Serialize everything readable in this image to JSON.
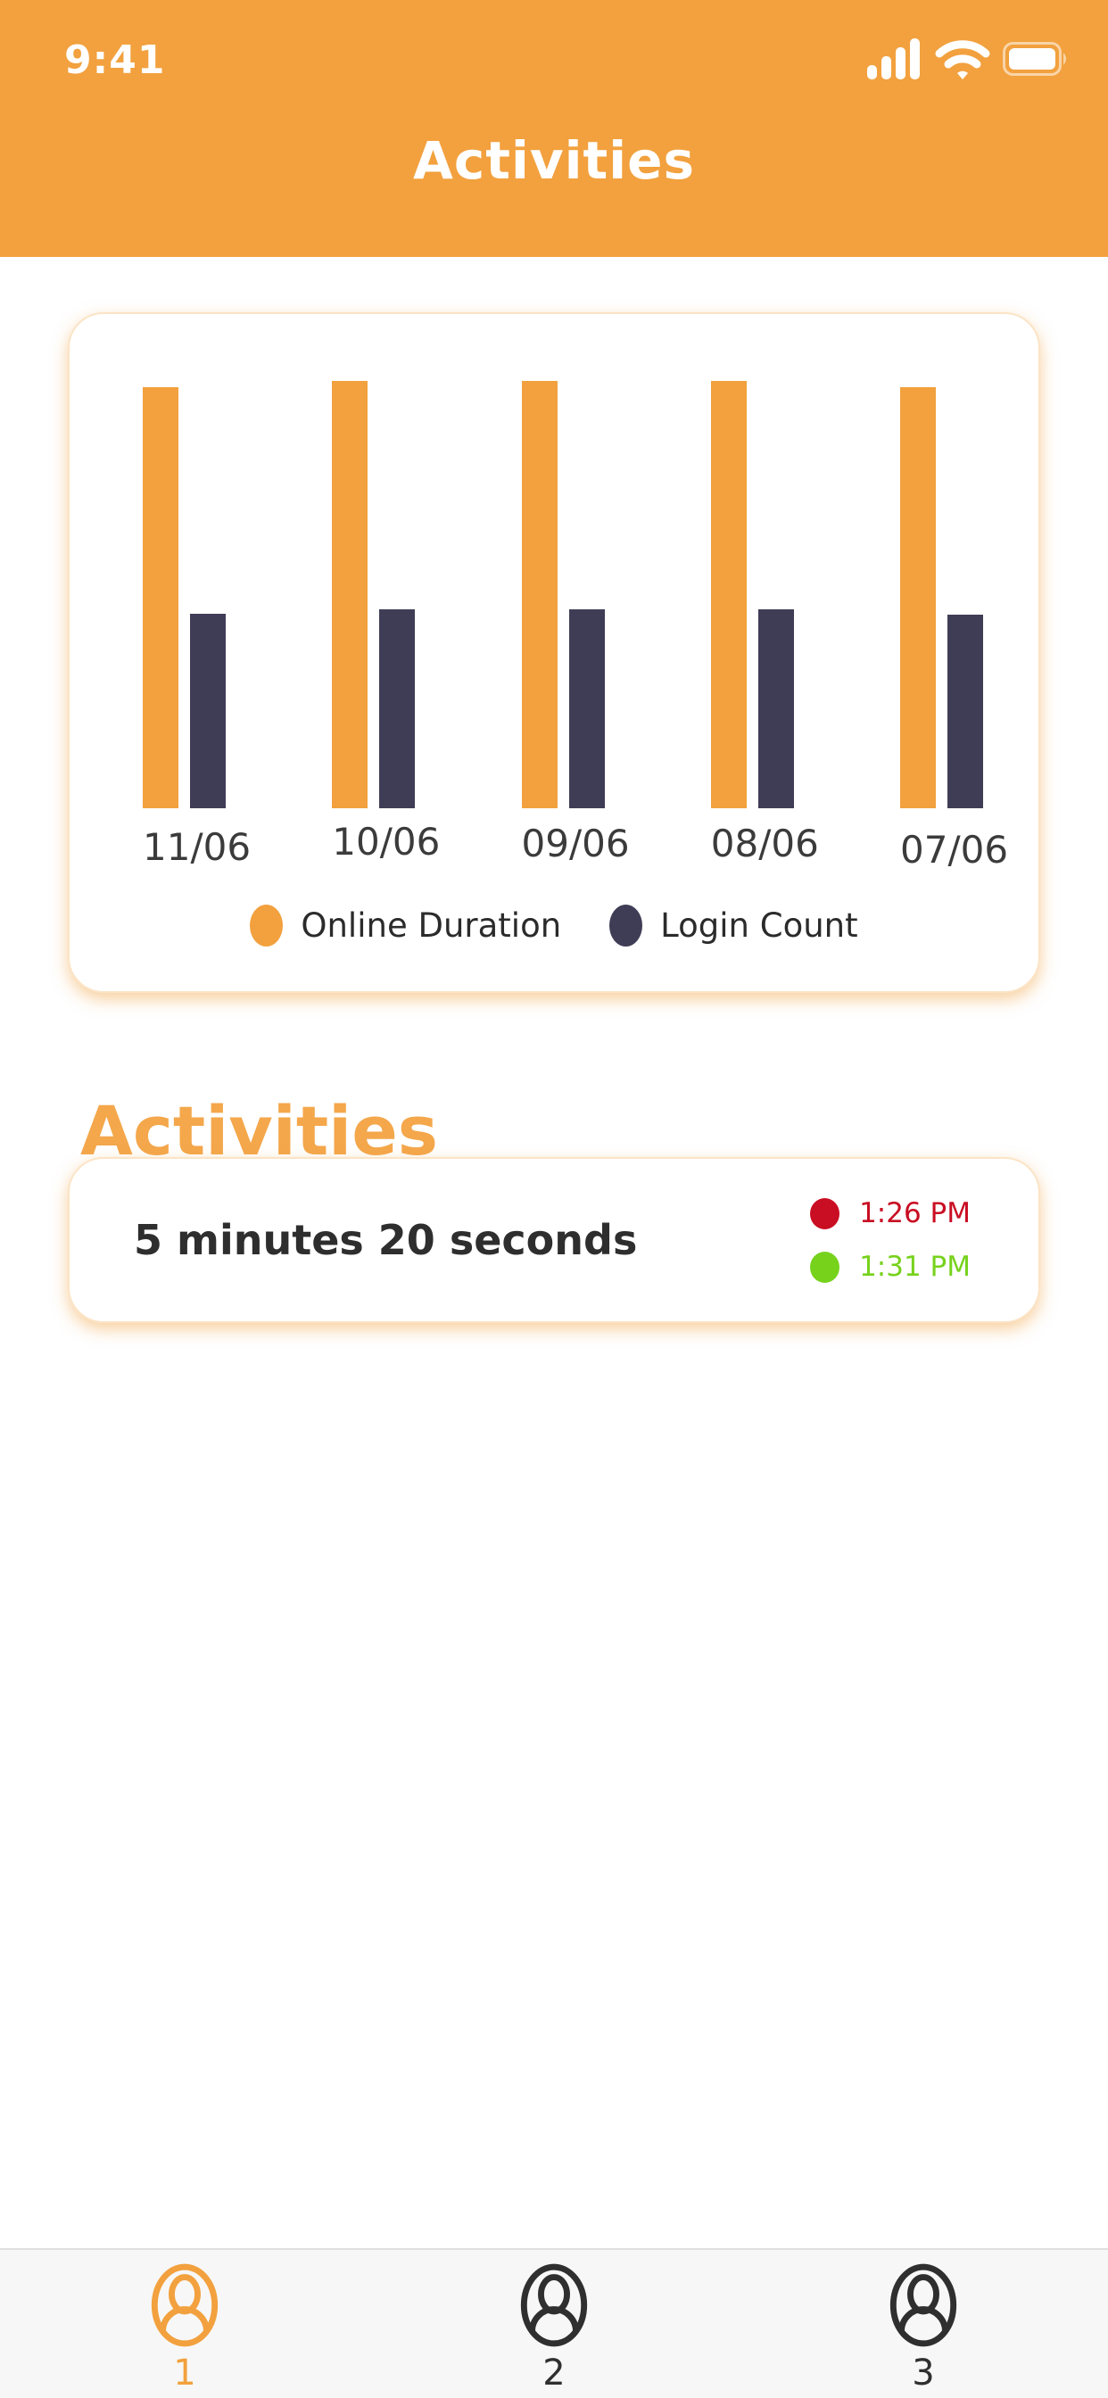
{
  "colors": {
    "accent": "#F2A13E",
    "heading_orange": "#F4A74B",
    "navy": "#3F3D56",
    "red": "#C90D23",
    "green": "#77D21C",
    "text_dark": "#2E2E2E",
    "label_gray": "#3B3B3B",
    "card_border": "#FBE4C6",
    "card_glow": "rgba(242,161,62,0.5)",
    "tabbar_bg": "#F7F7F7",
    "tabbar_border": "#E0E0E0",
    "tab_inactive": "#2F2F2F"
  },
  "status_bar": {
    "time": "9:41",
    "icons": [
      "cellular-signal-icon",
      "wifi-icon",
      "battery-icon"
    ]
  },
  "header": {
    "title": "Activities"
  },
  "chart_data": {
    "type": "bar",
    "categories": [
      "11/06",
      "10/06",
      "09/06",
      "08/06",
      "07/06"
    ],
    "series": [
      {
        "name": "Online Duration",
        "color": "#F2A13E",
        "values": [
          472,
          479,
          479,
          479,
          472
        ]
      },
      {
        "name": "Login Count",
        "color": "#3F3D56",
        "values": [
          218,
          223,
          223,
          223,
          217
        ]
      }
    ],
    "title": "",
    "xlabel": "",
    "ylabel": "",
    "ylim": [
      0,
      479
    ],
    "grid": false,
    "legend_position": "bottom",
    "units_note": "relative bar heights in screen pixels; chart displays no numeric y-axis"
  },
  "section": {
    "heading": "Activities"
  },
  "activity_card": {
    "duration": "5 minutes 20 seconds",
    "events": [
      {
        "time": "1:26 PM",
        "dot_color": "#C90D23"
      },
      {
        "time": "1:31 PM",
        "dot_color": "#77D21C"
      }
    ]
  },
  "tab_bar": {
    "tabs": [
      {
        "label": "1",
        "icon": "person-icon",
        "active": true
      },
      {
        "label": "2",
        "icon": "person-icon",
        "active": false
      },
      {
        "label": "3",
        "icon": "person-icon",
        "active": false
      }
    ]
  }
}
